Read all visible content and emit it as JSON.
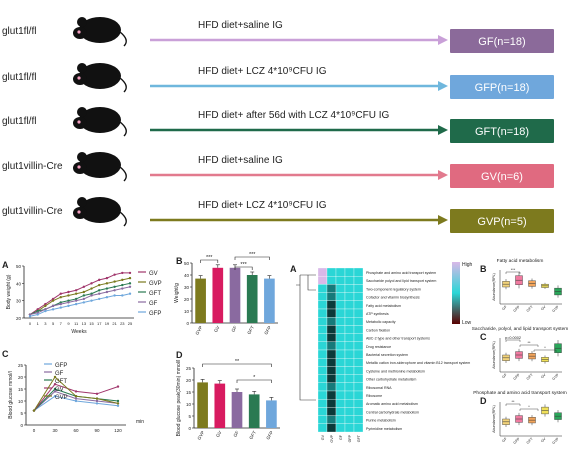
{
  "schema": {
    "rows": [
      {
        "strain": "glut1fl/fl",
        "treatment": "HFD diet+saline IG",
        "group": "GF(n=18)",
        "color": "#c9a0d8",
        "box": "#8b6a9a"
      },
      {
        "strain": "glut1fl/fl",
        "treatment": "HFD diet+ LCZ 4*10⁹CFU IG",
        "group": "GFP(n=18)",
        "color": "#6fb7dd",
        "box": "#6fa7dc"
      },
      {
        "strain": "glut1fl/fl",
        "treatment": "HFD diet+ after 56d with LCZ 4*10⁹CFU IG",
        "group": "GFT(n=18)",
        "color": "#1f6a4a",
        "box": "#1f6a4a"
      },
      {
        "strain": "glut1villin-Cre",
        "treatment": "HFD diet+saline IG",
        "group": "GV(n=6)",
        "color": "#e27a8e",
        "box": "#e06a80"
      },
      {
        "strain": "glut1villin-Cre",
        "treatment": "HFD diet+ LCZ 4*10⁹CFU IG",
        "group": "GVP(n=5)",
        "color": "#7d7a1e",
        "box": "#7d7a1e"
      }
    ]
  },
  "panels": {
    "A_left": "A",
    "B_left": "B",
    "C_left": "C",
    "D_left": "D",
    "A_right": "A",
    "B_right": "B",
    "C_right": "C",
    "D_right": "D"
  },
  "chart_data": [
    {
      "id": "A",
      "type": "line",
      "xlabel": "Weeks",
      "ylabel": "Body weight (g)",
      "categories": [
        "0",
        "1",
        "3",
        "5",
        "7",
        "9",
        "11",
        "13",
        "15",
        "17",
        "19",
        "21",
        "23",
        "25"
      ],
      "ylim": [
        20,
        50
      ],
      "yticks": [
        20,
        30,
        40,
        50
      ],
      "series": [
        {
          "name": "GV",
          "color": "#a0356b",
          "values": [
            22,
            25,
            28,
            31,
            34,
            35,
            36,
            38,
            40,
            42,
            43,
            45,
            46,
            46
          ]
        },
        {
          "name": "GVP",
          "color": "#7a7a1e",
          "values": [
            22,
            24,
            27,
            30,
            32,
            33,
            34,
            35,
            37,
            39,
            40,
            41,
            42,
            43
          ]
        },
        {
          "name": "GFT",
          "color": "#2a7a52",
          "values": [
            22,
            24,
            25,
            27,
            29,
            30,
            31,
            33,
            34,
            36,
            37,
            38,
            39,
            40
          ]
        },
        {
          "name": "GF",
          "color": "#8a6aa0",
          "values": [
            22,
            23,
            25,
            27,
            28,
            29,
            30,
            31,
            33,
            34,
            35,
            36,
            37,
            38
          ]
        },
        {
          "name": "GFP",
          "color": "#6fa7dc",
          "values": [
            21,
            22,
            24,
            25,
            26,
            27,
            28,
            29,
            30,
            31,
            32,
            33,
            33,
            34
          ]
        }
      ]
    },
    {
      "id": "B",
      "type": "bar",
      "ylabel": "Weight/g",
      "categories": [
        "GVP",
        "GV",
        "GF",
        "GFT",
        "GFP"
      ],
      "values": [
        37,
        46,
        46,
        40,
        37
      ],
      "colors": [
        "#7d7a1e",
        "#d81b60",
        "#8a6aa0",
        "#2a7a52",
        "#6fa7dc"
      ],
      "ylim": [
        0,
        50
      ],
      "yticks": [
        0,
        10,
        20,
        30,
        40,
        50
      ],
      "sig": [
        "***",
        "***",
        "***"
      ]
    },
    {
      "id": "C",
      "type": "line",
      "ylabel": "Blood glucose mmol/l",
      "xlabel": "min",
      "categories": [
        "0",
        "30",
        "60",
        "90",
        "120"
      ],
      "ylim": [
        0,
        25
      ],
      "yticks": [
        0,
        5,
        10,
        15,
        20,
        25
      ],
      "series": [
        {
          "name": "GFP",
          "color": "#6fa7dc",
          "values": [
            6,
            12,
            10,
            9,
            8
          ]
        },
        {
          "name": "GF",
          "color": "#8a6aa0",
          "values": [
            6,
            14,
            11,
            10,
            9
          ]
        },
        {
          "name": "GFT",
          "color": "#2a7a52",
          "values": [
            6,
            15,
            12,
            11,
            10
          ]
        },
        {
          "name": "GV",
          "color": "#a0356b",
          "values": [
            6,
            17,
            14,
            13,
            16
          ]
        },
        {
          "name": "GVP",
          "color": "#7a7a1e",
          "values": [
            6,
            20,
            12,
            11,
            9
          ]
        }
      ]
    },
    {
      "id": "D",
      "type": "bar",
      "ylabel": "Blood glucose peak(30min) mmol/l",
      "categories": [
        "GVP",
        "GV",
        "GF",
        "GFT",
        "GFP"
      ],
      "values": [
        19,
        18.5,
        15,
        14,
        11.5
      ],
      "colors": [
        "#7d7a1e",
        "#d81b60",
        "#8a6aa0",
        "#2a7a52",
        "#6fa7dc"
      ],
      "ylim": [
        0,
        25
      ],
      "yticks": [
        0,
        5,
        10,
        15,
        20,
        25
      ],
      "sig": [
        "**",
        "*"
      ]
    }
  ],
  "heatmap": {
    "legend_high": "High",
    "legend_low": "Low",
    "cols": [
      "GV",
      "GVP",
      "GF",
      "GFP",
      "GFT"
    ],
    "rows": [
      "Phosphate and amino acid transport system",
      "Saccharide polyol and lipid transport system",
      "Two-component regulatory system",
      "Cofactor and vitamin biosynthesis",
      "Fatty acid metabolism",
      "ATP synthesis",
      "Metabolic capacity",
      "Carbon fixation",
      "ABC-2 type and other transport systems",
      "Drug resistance",
      "Bacterial secretion system",
      "Metallic cation iron-siderophore and vitamin B12 transport system",
      "Cysteine and methionine metabolism",
      "Other carbohydrate metabolism",
      "Ribosomal RNA",
      "Ribosome",
      "Aromatic amino acid metabolism",
      "Central carbohydrate metabolism",
      "Purine metabolism",
      "Pyrimidine metabolism"
    ],
    "values": [
      [
        0.75,
        0.65,
        0.5,
        0.45,
        0.5
      ],
      [
        0.75,
        0.6,
        0.5,
        0.45,
        0.5
      ],
      [
        0.5,
        0.3,
        0.5,
        0.5,
        0.5
      ],
      [
        0.5,
        0.3,
        0.5,
        0.5,
        0.5
      ],
      [
        0.5,
        0.2,
        0.5,
        0.5,
        0.5
      ],
      [
        0.5,
        0.25,
        0.5,
        0.5,
        0.5
      ],
      [
        0.5,
        0.3,
        0.5,
        0.5,
        0.5
      ],
      [
        0.5,
        0.2,
        0.5,
        0.5,
        0.5
      ],
      [
        0.5,
        0.25,
        0.5,
        0.5,
        0.5
      ],
      [
        0.5,
        0.3,
        0.5,
        0.5,
        0.5
      ],
      [
        0.5,
        0.25,
        0.5,
        0.5,
        0.5
      ],
      [
        0.5,
        0.2,
        0.5,
        0.5,
        0.5
      ],
      [
        0.5,
        0.25,
        0.5,
        0.5,
        0.5
      ],
      [
        0.5,
        0.2,
        0.5,
        0.5,
        0.5
      ],
      [
        0.5,
        0.3,
        0.5,
        0.5,
        0.5
      ],
      [
        0.5,
        0.25,
        0.5,
        0.5,
        0.5
      ],
      [
        0.5,
        0.2,
        0.5,
        0.5,
        0.5
      ],
      [
        0.5,
        0.25,
        0.5,
        0.5,
        0.5
      ],
      [
        0.5,
        0.3,
        0.5,
        0.5,
        0.5
      ],
      [
        0.5,
        0.2,
        0.5,
        0.5,
        0.5
      ]
    ]
  },
  "boxplots": [
    {
      "id": "B",
      "title": "Fatty acid metabolism",
      "ylabel": "Abundance(RPL)",
      "cats": [
        "GF",
        "GFP",
        "GFT",
        "GV",
        "GVP"
      ],
      "colors": [
        "#f2d37b",
        "#f07aa0",
        "#f3a55b",
        "#f0e05a",
        "#2aa65a"
      ],
      "medians": [
        0.55,
        0.62,
        0.56,
        0.52,
        0.42
      ],
      "spread": [
        0.05,
        0.08,
        0.05,
        0.03,
        0.06
      ],
      "sig": [
        "***"
      ]
    },
    {
      "id": "C",
      "title": "Saccharide, polyol, and lipid transport system",
      "ylabel": "Abundance(RPL)",
      "cats": [
        "GF",
        "GFP",
        "GFT",
        "GV",
        "GVP"
      ],
      "colors": [
        "#f2d37b",
        "#f07aa0",
        "#f3a55b",
        "#f0e05a",
        "#2aa65a"
      ],
      "medians": [
        0.45,
        0.5,
        0.48,
        0.42,
        0.62
      ],
      "spread": [
        0.05,
        0.06,
        0.05,
        0.04,
        0.08
      ],
      "sig": [
        "p=0.0002",
        "**",
        "*"
      ]
    },
    {
      "id": "D",
      "title": "Phosphate and amino acid transport system",
      "ylabel": "Abundance(RPL)",
      "cats": [
        "GF",
        "GFP",
        "GFT",
        "GV",
        "GVP"
      ],
      "colors": [
        "#f2d37b",
        "#f07aa0",
        "#f3a55b",
        "#f0e05a",
        "#2aa65a"
      ],
      "medians": [
        0.45,
        0.5,
        0.48,
        0.65,
        0.55
      ],
      "spread": [
        0.05,
        0.06,
        0.05,
        0.06,
        0.06
      ],
      "sig": [
        "**",
        "*"
      ]
    }
  ]
}
